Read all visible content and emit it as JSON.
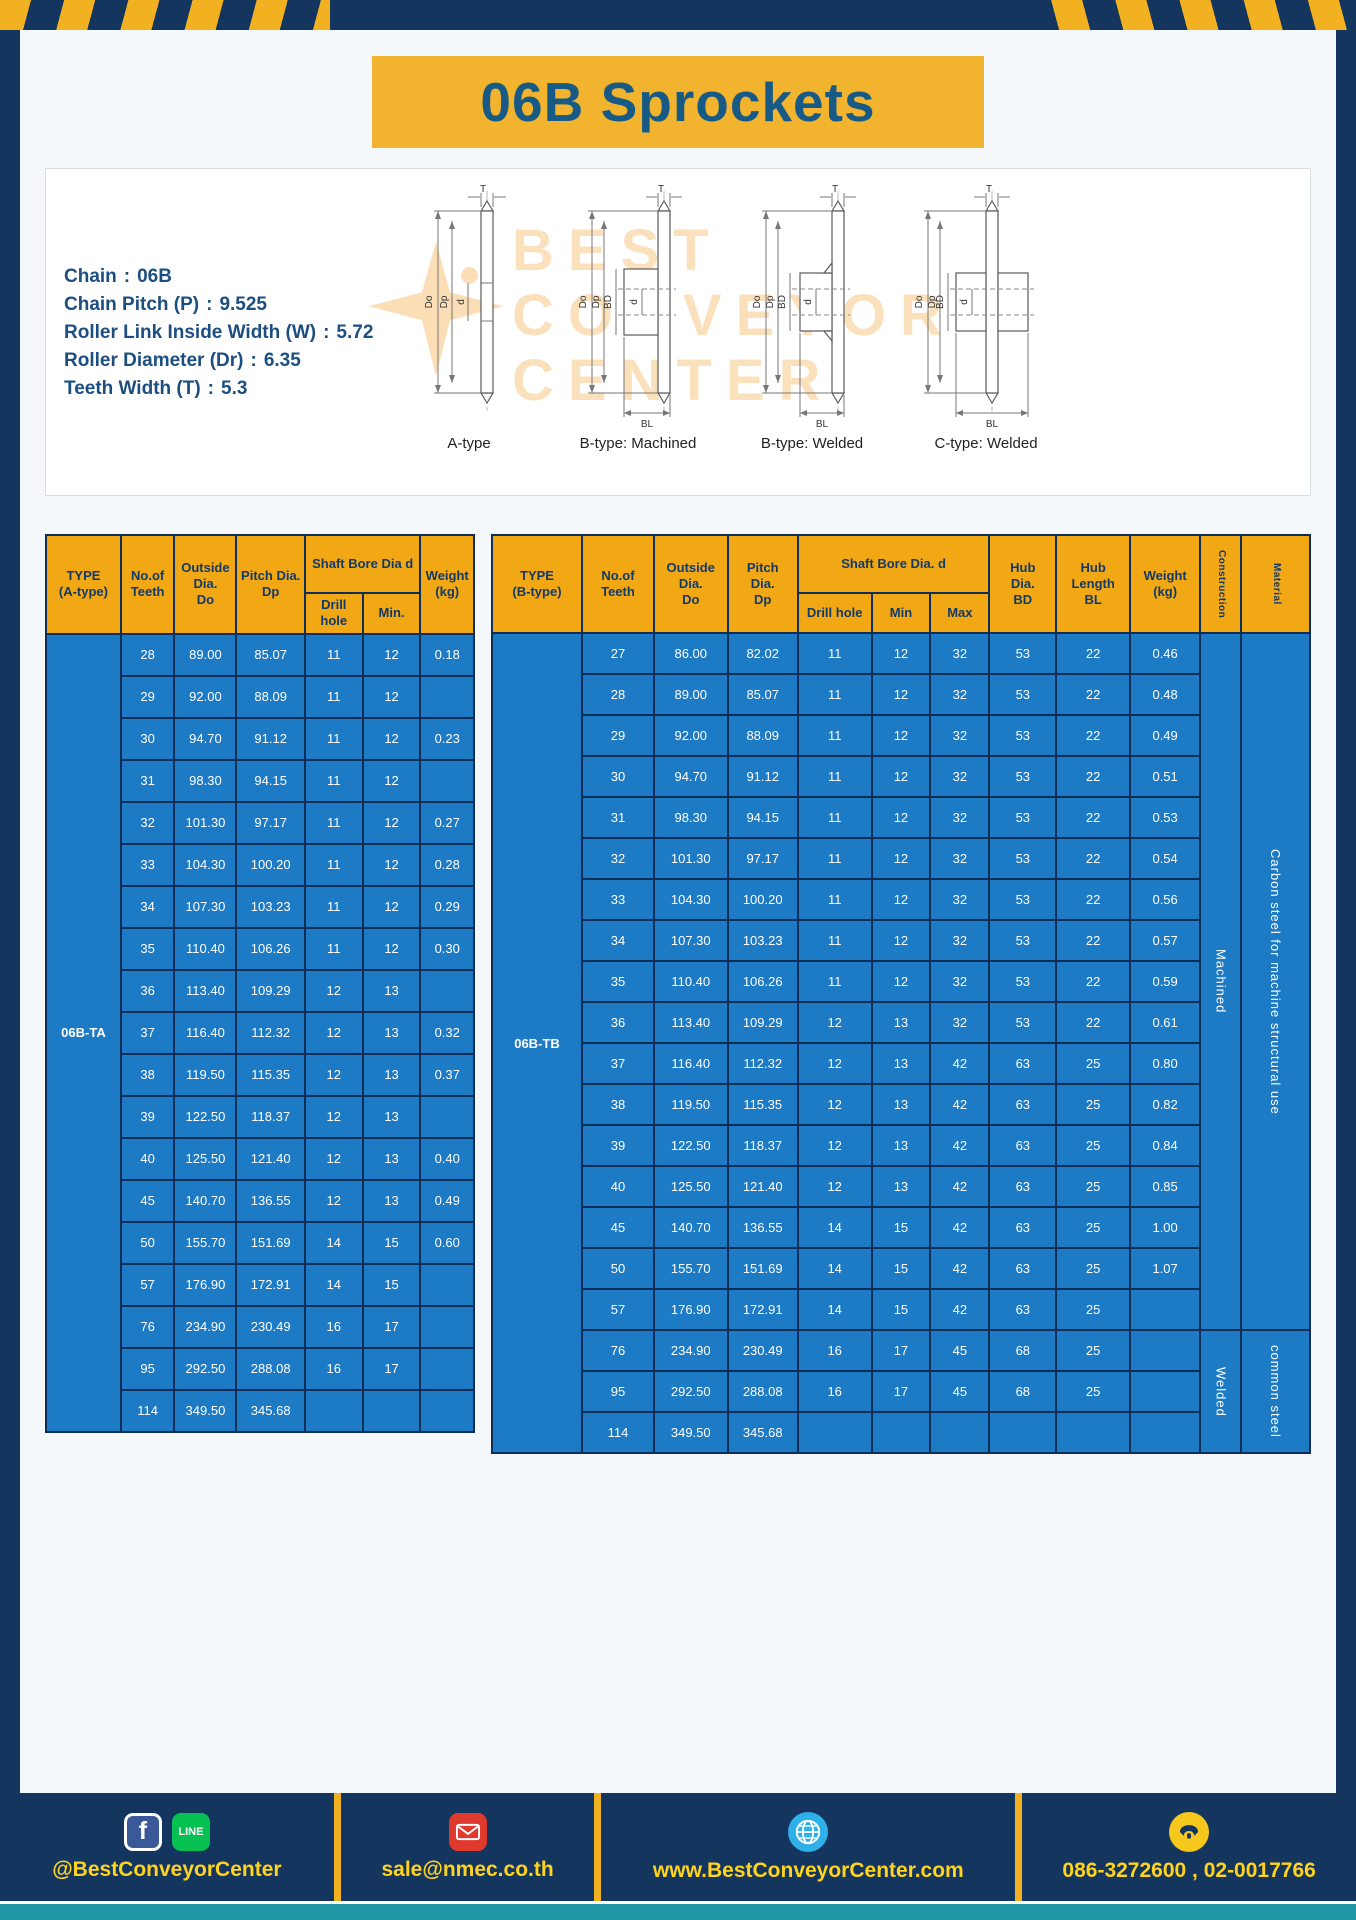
{
  "page": {
    "title": "06B Sprockets"
  },
  "colors": {
    "navy": "#14355e",
    "yellow": "#f2b120",
    "header_orange": "#f2a714",
    "cell_blue": "#1d7ac5",
    "title_text": "#175a85",
    "teal_strip": "#2196a6",
    "footer_text": "#ffd31e"
  },
  "spec": {
    "colon": ":",
    "lines": [
      {
        "label": "Chain",
        "value": "06B"
      },
      {
        "label": "Chain Pitch (P)",
        "value": "9.525"
      },
      {
        "label": "Roller Link Inside Width (W)",
        "value": "5.72"
      },
      {
        "label": "Roller Diameter (Dr)",
        "value": "6.35"
      },
      {
        "label": "Teeth Width (T)",
        "value": "5.3"
      }
    ],
    "watermark": {
      "line1": "BEST",
      "line2": "CONVEYOR",
      "line3": "CENTER"
    },
    "diagrams": [
      {
        "caption": "A-type",
        "labels": {
          "t": "T",
          "do": "Do",
          "dp": "Dp",
          "d": "d"
        }
      },
      {
        "caption": "B-type: Machined",
        "labels": {
          "t": "T",
          "do": "Do",
          "dp": "Dp",
          "d": "d",
          "bd": "BD",
          "bl": "BL"
        }
      },
      {
        "caption": "B-type: Welded",
        "labels": {
          "t": "T",
          "do": "Do",
          "dp": "Dp",
          "d": "d",
          "bd": "BD",
          "bl": "BL"
        }
      },
      {
        "caption": "C-type: Welded",
        "labels": {
          "t": "T",
          "do": "Do",
          "dp": "Dp",
          "d": "d",
          "bd": "BD",
          "bl": "BL"
        }
      }
    ]
  },
  "table_a": {
    "type_label": "06B-TA",
    "headers": {
      "type": "TYPE\n(A-type)",
      "teeth": "No.of\nTeeth",
      "outside": "Outside\nDia.\nDo",
      "pitch": "Pitch Dia.\nDp",
      "shaft_bore": "Shaft Bore Dia d",
      "drill": "Drill hole",
      "min": "Min.",
      "weight": "Weight\n(kg)"
    },
    "rows": [
      [
        "28",
        "89.00",
        "85.07",
        "11",
        "12",
        "0.18"
      ],
      [
        "29",
        "92.00",
        "88.09",
        "11",
        "12",
        ""
      ],
      [
        "30",
        "94.70",
        "91.12",
        "11",
        "12",
        "0.23"
      ],
      [
        "31",
        "98.30",
        "94.15",
        "11",
        "12",
        ""
      ],
      [
        "32",
        "101.30",
        "97.17",
        "11",
        "12",
        "0.27"
      ],
      [
        "33",
        "104.30",
        "100.20",
        "11",
        "12",
        "0.28"
      ],
      [
        "34",
        "107.30",
        "103.23",
        "11",
        "12",
        "0.29"
      ],
      [
        "35",
        "110.40",
        "106.26",
        "11",
        "12",
        "0.30"
      ],
      [
        "36",
        "113.40",
        "109.29",
        "12",
        "13",
        ""
      ],
      [
        "37",
        "116.40",
        "112.32",
        "12",
        "13",
        "0.32"
      ],
      [
        "38",
        "119.50",
        "115.35",
        "12",
        "13",
        "0.37"
      ],
      [
        "39",
        "122.50",
        "118.37",
        "12",
        "13",
        ""
      ],
      [
        "40",
        "125.50",
        "121.40",
        "12",
        "13",
        "0.40"
      ],
      [
        "45",
        "140.70",
        "136.55",
        "12",
        "13",
        "0.49"
      ],
      [
        "50",
        "155.70",
        "151.69",
        "14",
        "15",
        "0.60"
      ],
      [
        "57",
        "176.90",
        "172.91",
        "14",
        "15",
        ""
      ],
      [
        "76",
        "234.90",
        "230.49",
        "16",
        "17",
        ""
      ],
      [
        "95",
        "292.50",
        "288.08",
        "16",
        "17",
        ""
      ],
      [
        "114",
        "349.50",
        "345.68",
        "",
        "",
        ""
      ]
    ]
  },
  "table_b": {
    "type_label": "06B-TB",
    "headers": {
      "type": "TYPE\n(B-type)",
      "teeth": "No.of\nTeeth",
      "outside": "Outside\nDia.\nDo",
      "pitch": "Pitch\nDia.\nDp",
      "shaft_bore": "Shaft Bore Dia. d",
      "drill": "Drill hole",
      "min": "Min",
      "max": "Max",
      "hub_dia": "Hub\nDia.\nBD",
      "hub_len": "Hub\nLength\nBL",
      "weight": "Weight\n(kg)",
      "construction": "Construction",
      "material": "Material"
    },
    "rows": [
      [
        "27",
        "86.00",
        "82.02",
        "11",
        "12",
        "32",
        "53",
        "22",
        "0.46"
      ],
      [
        "28",
        "89.00",
        "85.07",
        "11",
        "12",
        "32",
        "53",
        "22",
        "0.48"
      ],
      [
        "29",
        "92.00",
        "88.09",
        "11",
        "12",
        "32",
        "53",
        "22",
        "0.49"
      ],
      [
        "30",
        "94.70",
        "91.12",
        "11",
        "12",
        "32",
        "53",
        "22",
        "0.51"
      ],
      [
        "31",
        "98.30",
        "94.15",
        "11",
        "12",
        "32",
        "53",
        "22",
        "0.53"
      ],
      [
        "32",
        "101.30",
        "97.17",
        "11",
        "12",
        "32",
        "53",
        "22",
        "0.54"
      ],
      [
        "33",
        "104.30",
        "100.20",
        "11",
        "12",
        "32",
        "53",
        "22",
        "0.56"
      ],
      [
        "34",
        "107.30",
        "103.23",
        "11",
        "12",
        "32",
        "53",
        "22",
        "0.57"
      ],
      [
        "35",
        "110.40",
        "106.26",
        "11",
        "12",
        "32",
        "53",
        "22",
        "0.59"
      ],
      [
        "36",
        "113.40",
        "109.29",
        "12",
        "13",
        "32",
        "53",
        "22",
        "0.61"
      ],
      [
        "37",
        "116.40",
        "112.32",
        "12",
        "13",
        "42",
        "63",
        "25",
        "0.80"
      ],
      [
        "38",
        "119.50",
        "115.35",
        "12",
        "13",
        "42",
        "63",
        "25",
        "0.82"
      ],
      [
        "39",
        "122.50",
        "118.37",
        "12",
        "13",
        "42",
        "63",
        "25",
        "0.84"
      ],
      [
        "40",
        "125.50",
        "121.40",
        "12",
        "13",
        "42",
        "63",
        "25",
        "0.85"
      ],
      [
        "45",
        "140.70",
        "136.55",
        "14",
        "15",
        "42",
        "63",
        "25",
        "1.00"
      ],
      [
        "50",
        "155.70",
        "151.69",
        "14",
        "15",
        "42",
        "63",
        "25",
        "1.07"
      ],
      [
        "57",
        "176.90",
        "172.91",
        "14",
        "15",
        "42",
        "63",
        "25",
        ""
      ],
      [
        "76",
        "234.90",
        "230.49",
        "16",
        "17",
        "45",
        "68",
        "25",
        ""
      ],
      [
        "95",
        "292.50",
        "288.08",
        "16",
        "17",
        "45",
        "68",
        "25",
        ""
      ],
      [
        "114",
        "349.50",
        "345.68",
        "",
        "",
        "",
        "",
        "",
        ""
      ]
    ],
    "construction_spans": [
      {
        "label": "Machined",
        "start": 0,
        "count": 17
      },
      {
        "label": "Welded",
        "start": 17,
        "count": 3
      }
    ],
    "material_spans": [
      {
        "label": "Carbon steel for machine structural use",
        "start": 0,
        "count": 17
      },
      {
        "label": "common steel",
        "start": 17,
        "count": 3
      }
    ]
  },
  "footer": {
    "facebook_letter": "f",
    "line_text": "LINE",
    "social": "@BestConveyorCenter",
    "email": "sale@nmec.co.th",
    "website": "www.BestConveyorCenter.com",
    "phone": "086-3272600 , 02-0017766"
  }
}
